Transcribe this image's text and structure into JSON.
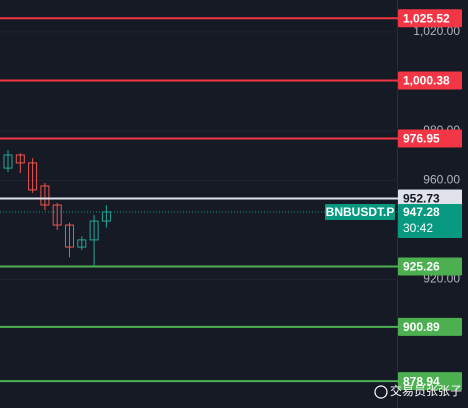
{
  "chart_data": {
    "type": "candlestick",
    "symbol": "BNBUSDT.P",
    "countdown": "30:42",
    "watermark": "交易员张张子",
    "up_color": "#26a69a",
    "down_color": "#ef5350",
    "open": [
      965.0,
      970.3,
      967.1,
      957.8,
      950.1,
      942.0,
      933.1,
      936.0,
      943.6
    ],
    "high": [
      972.3,
      971.0,
      969.0,
      959.0,
      951.0,
      943.0,
      937.5,
      946.0,
      950.0
    ],
    "low": [
      963.4,
      963.0,
      955.0,
      948.0,
      940.0,
      929.0,
      932.0,
      925.3,
      941.0
    ],
    "close": [
      970.3,
      967.1,
      956.2,
      950.1,
      942.0,
      933.1,
      936.0,
      943.6,
      947.3
    ],
    "ylim": [
      868.1,
      1032.9
    ],
    "yticks": [
      {
        "value": 1020,
        "label": "1,020.00"
      },
      {
        "value": 980,
        "label": "980.00"
      },
      {
        "value": 960,
        "label": "960.00"
      },
      {
        "value": 920,
        "label": "920.00"
      }
    ],
    "grid": true,
    "levels": {
      "values": [
        1025.52,
        1000.38,
        976.95,
        952.73,
        925.26,
        900.89,
        878.94
      ],
      "value_labels": [
        "1,025.52",
        "1,000.38",
        "976.95",
        "952.73",
        "925.26",
        "900.89",
        "878.94"
      ],
      "colors": [
        "#f23645",
        "#f23645",
        "#f23645",
        "#e0e3eb",
        "#4caf50",
        "#4caf50",
        "#4caf50"
      ]
    },
    "last_price": {
      "value": 947.28,
      "color": "#089981"
    }
  }
}
